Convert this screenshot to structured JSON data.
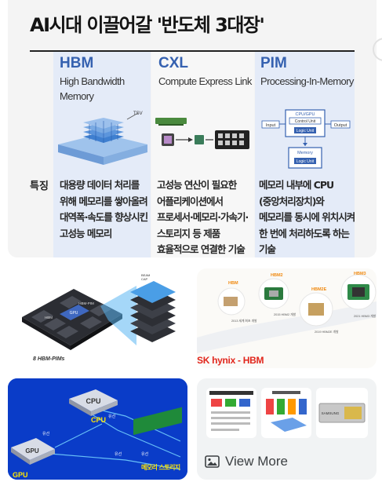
{
  "main_image": {
    "title": "AI시대 이끌어갈 '반도체 3대장'",
    "feature_label": "특징",
    "columns": [
      {
        "acronym": "HBM",
        "full_name": "High Bandwidth Memory",
        "feature": "대용량 데이터 처리를 위해 메모리를 쌓아올려 대역폭·속도를 향상시킨 고성능 메모리"
      },
      {
        "acronym": "CXL",
        "full_name": "Compute Express Link",
        "feature": "고성능 연산이 필요한 어플리케이션에서 프로세서·메모리·가속기·스토리지 등 제품 효율적으로 연결한 기술"
      },
      {
        "acronym": "PIM",
        "full_name": "Processing-In-Memory",
        "feature": "메모리 내부에 CPU (중앙처리장치)와 메모리를 동시에 위치시켜 한 번에 처리하도록 하는 기술"
      }
    ],
    "pim_diagram": {
      "top": "CPU/GPU",
      "ctrl": "Control Unit",
      "logic": "Logic Unit",
      "input": "Input",
      "output": "Output",
      "memory": "Memory",
      "logic2": "Logic Unit"
    },
    "hbm_label": "TSV"
  },
  "thumbnails": [
    {
      "caption": "8 HBM-PIMs",
      "labels": [
        "GPU",
        "HBM",
        "HBM-PIM"
      ],
      "top_labels": [
        "BEAM",
        "CAP"
      ]
    },
    {
      "caption": "SK hynix - HBM",
      "steps": [
        "HBM",
        "HBM2",
        "HBM2E",
        "HBM3"
      ],
      "step_notes": [
        "2013 세계 최초 개발",
        "2015 HBM2 개발",
        "2019 HBM2E 개발",
        "2021 HBM3 개발"
      ]
    },
    {
      "labels": [
        "CPU",
        "GPU",
        "메모리 스토리지"
      ],
      "small_labels": [
        "유선",
        "유선",
        "유선",
        "유선"
      ]
    },
    {
      "view_more": "View More",
      "brand": "SAMSUNG"
    }
  ],
  "colors": {
    "accent_blue": "#3561b0",
    "column_tint": "#e4ebf8",
    "thumb3_bg": "#0a3cc8",
    "skhynix_red": "#e1251b",
    "view_more_text": "#3c4043"
  },
  "icons": {
    "view_more": "image-icon"
  }
}
